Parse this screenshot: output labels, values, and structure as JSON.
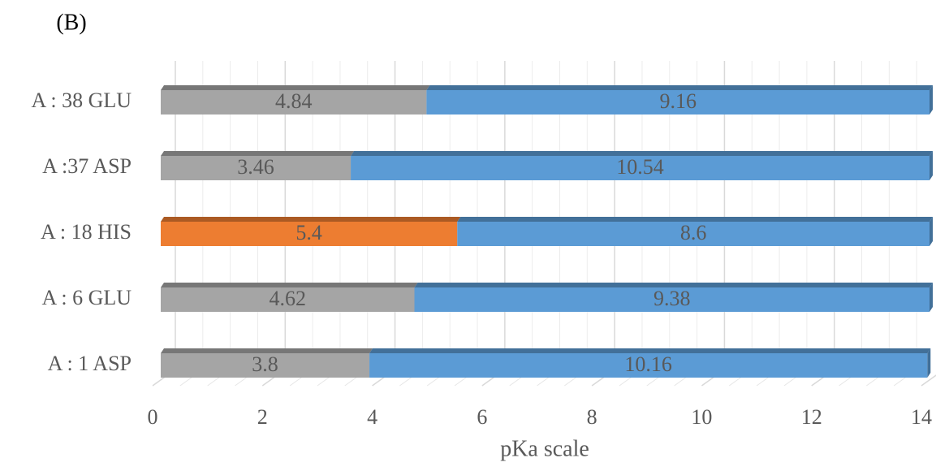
{
  "panel_label": "(B)",
  "chart_data": {
    "type": "stacked-barh",
    "categories": [
      "A : 38 GLU",
      "A :37 ASP",
      "A : 18 HIS",
      "A : 6 GLU",
      "A : 1 ASP"
    ],
    "series": [
      {
        "colors": [
          "#a5a5a5",
          "#a5a5a5",
          "#ed7d31",
          "#a5a5a5",
          "#a5a5a5"
        ],
        "values": [
          4.84,
          3.46,
          5.4,
          4.62,
          3.8
        ]
      },
      {
        "color": "#5b9bd5",
        "values": [
          9.16,
          10.54,
          8.6,
          9.38,
          10.16
        ]
      }
    ],
    "xlabel": "pKa scale",
    "xlim": [
      0,
      14
    ],
    "xticks": [
      0,
      2,
      4,
      6,
      8,
      10,
      12,
      14
    ],
    "grid": true
  }
}
